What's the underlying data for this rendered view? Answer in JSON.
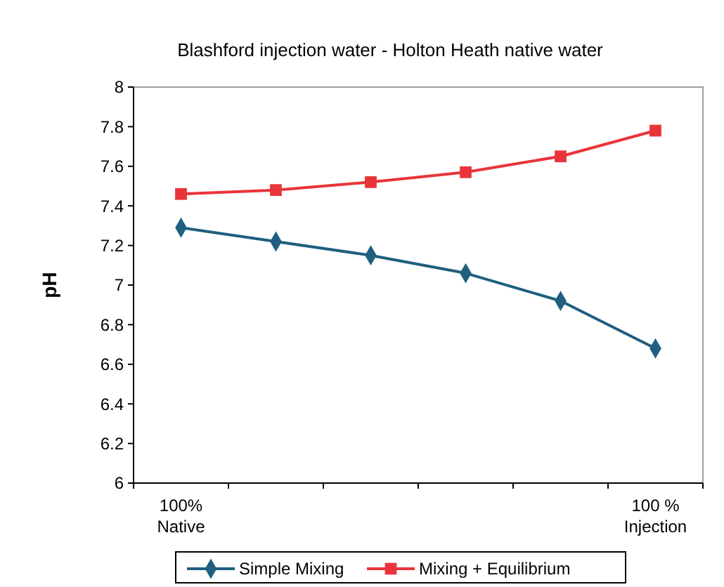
{
  "chart_data": {
    "type": "line",
    "title": "Blashford injection water - Holton Heath native water",
    "ylabel": "pH",
    "categories": [
      "100%\nNative",
      null,
      null,
      null,
      null,
      "100 %\nInjection"
    ],
    "series": [
      {
        "name": "Simple Mixing",
        "color": "#1f5f7f",
        "marker": "diamond",
        "values": [
          7.29,
          7.22,
          7.15,
          7.06,
          6.92,
          6.68
        ]
      },
      {
        "name": "Mixing + Equilibrium",
        "color": "#e8343a",
        "marker": "square",
        "values": [
          7.46,
          7.48,
          7.52,
          7.57,
          7.65,
          7.78
        ]
      }
    ],
    "ylim": [
      6,
      8
    ],
    "yticks": [
      6,
      6.2,
      6.4,
      6.6,
      6.8,
      7,
      7.2,
      7.4,
      7.6,
      7.8,
      8
    ],
    "grid": false,
    "legend": "bottom"
  }
}
